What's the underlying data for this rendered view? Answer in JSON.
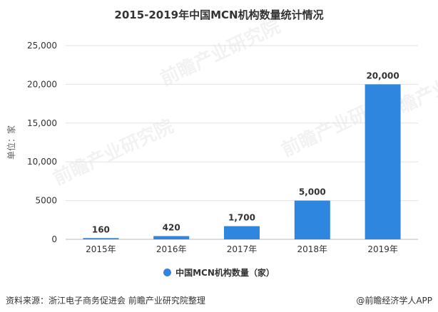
{
  "title": "2015-2019年中国MCN机构数量统计情况",
  "footer": {
    "source": "资料来源：浙江电子商务促进会 前瞻产业研究院整理",
    "credit": "@前瞻经济学人APP"
  },
  "chart_data": {
    "type": "bar",
    "title": "2015-2019年中国MCN机构数量统计情况",
    "ylabel": "单位：家",
    "xlabel": "",
    "categories": [
      "2015年",
      "2016年",
      "2017年",
      "2018年",
      "2019年"
    ],
    "series": [
      {
        "name": "中国MCN机构数量（家）",
        "values": [
          160,
          420,
          1700,
          5000,
          20000
        ],
        "labels": [
          "160",
          "420",
          "1,700",
          "5,000",
          "20,000"
        ],
        "color": "#2e86de"
      }
    ],
    "yticks": [
      "0",
      "5000",
      "10,000",
      "15,000",
      "20,000",
      "25,000"
    ],
    "ytick_values": [
      0,
      5000,
      10000,
      15000,
      20000,
      25000
    ],
    "ylim": [
      0,
      25000
    ],
    "grid": true,
    "legend": "bottom",
    "watermark": "前瞻产业研究院"
  }
}
